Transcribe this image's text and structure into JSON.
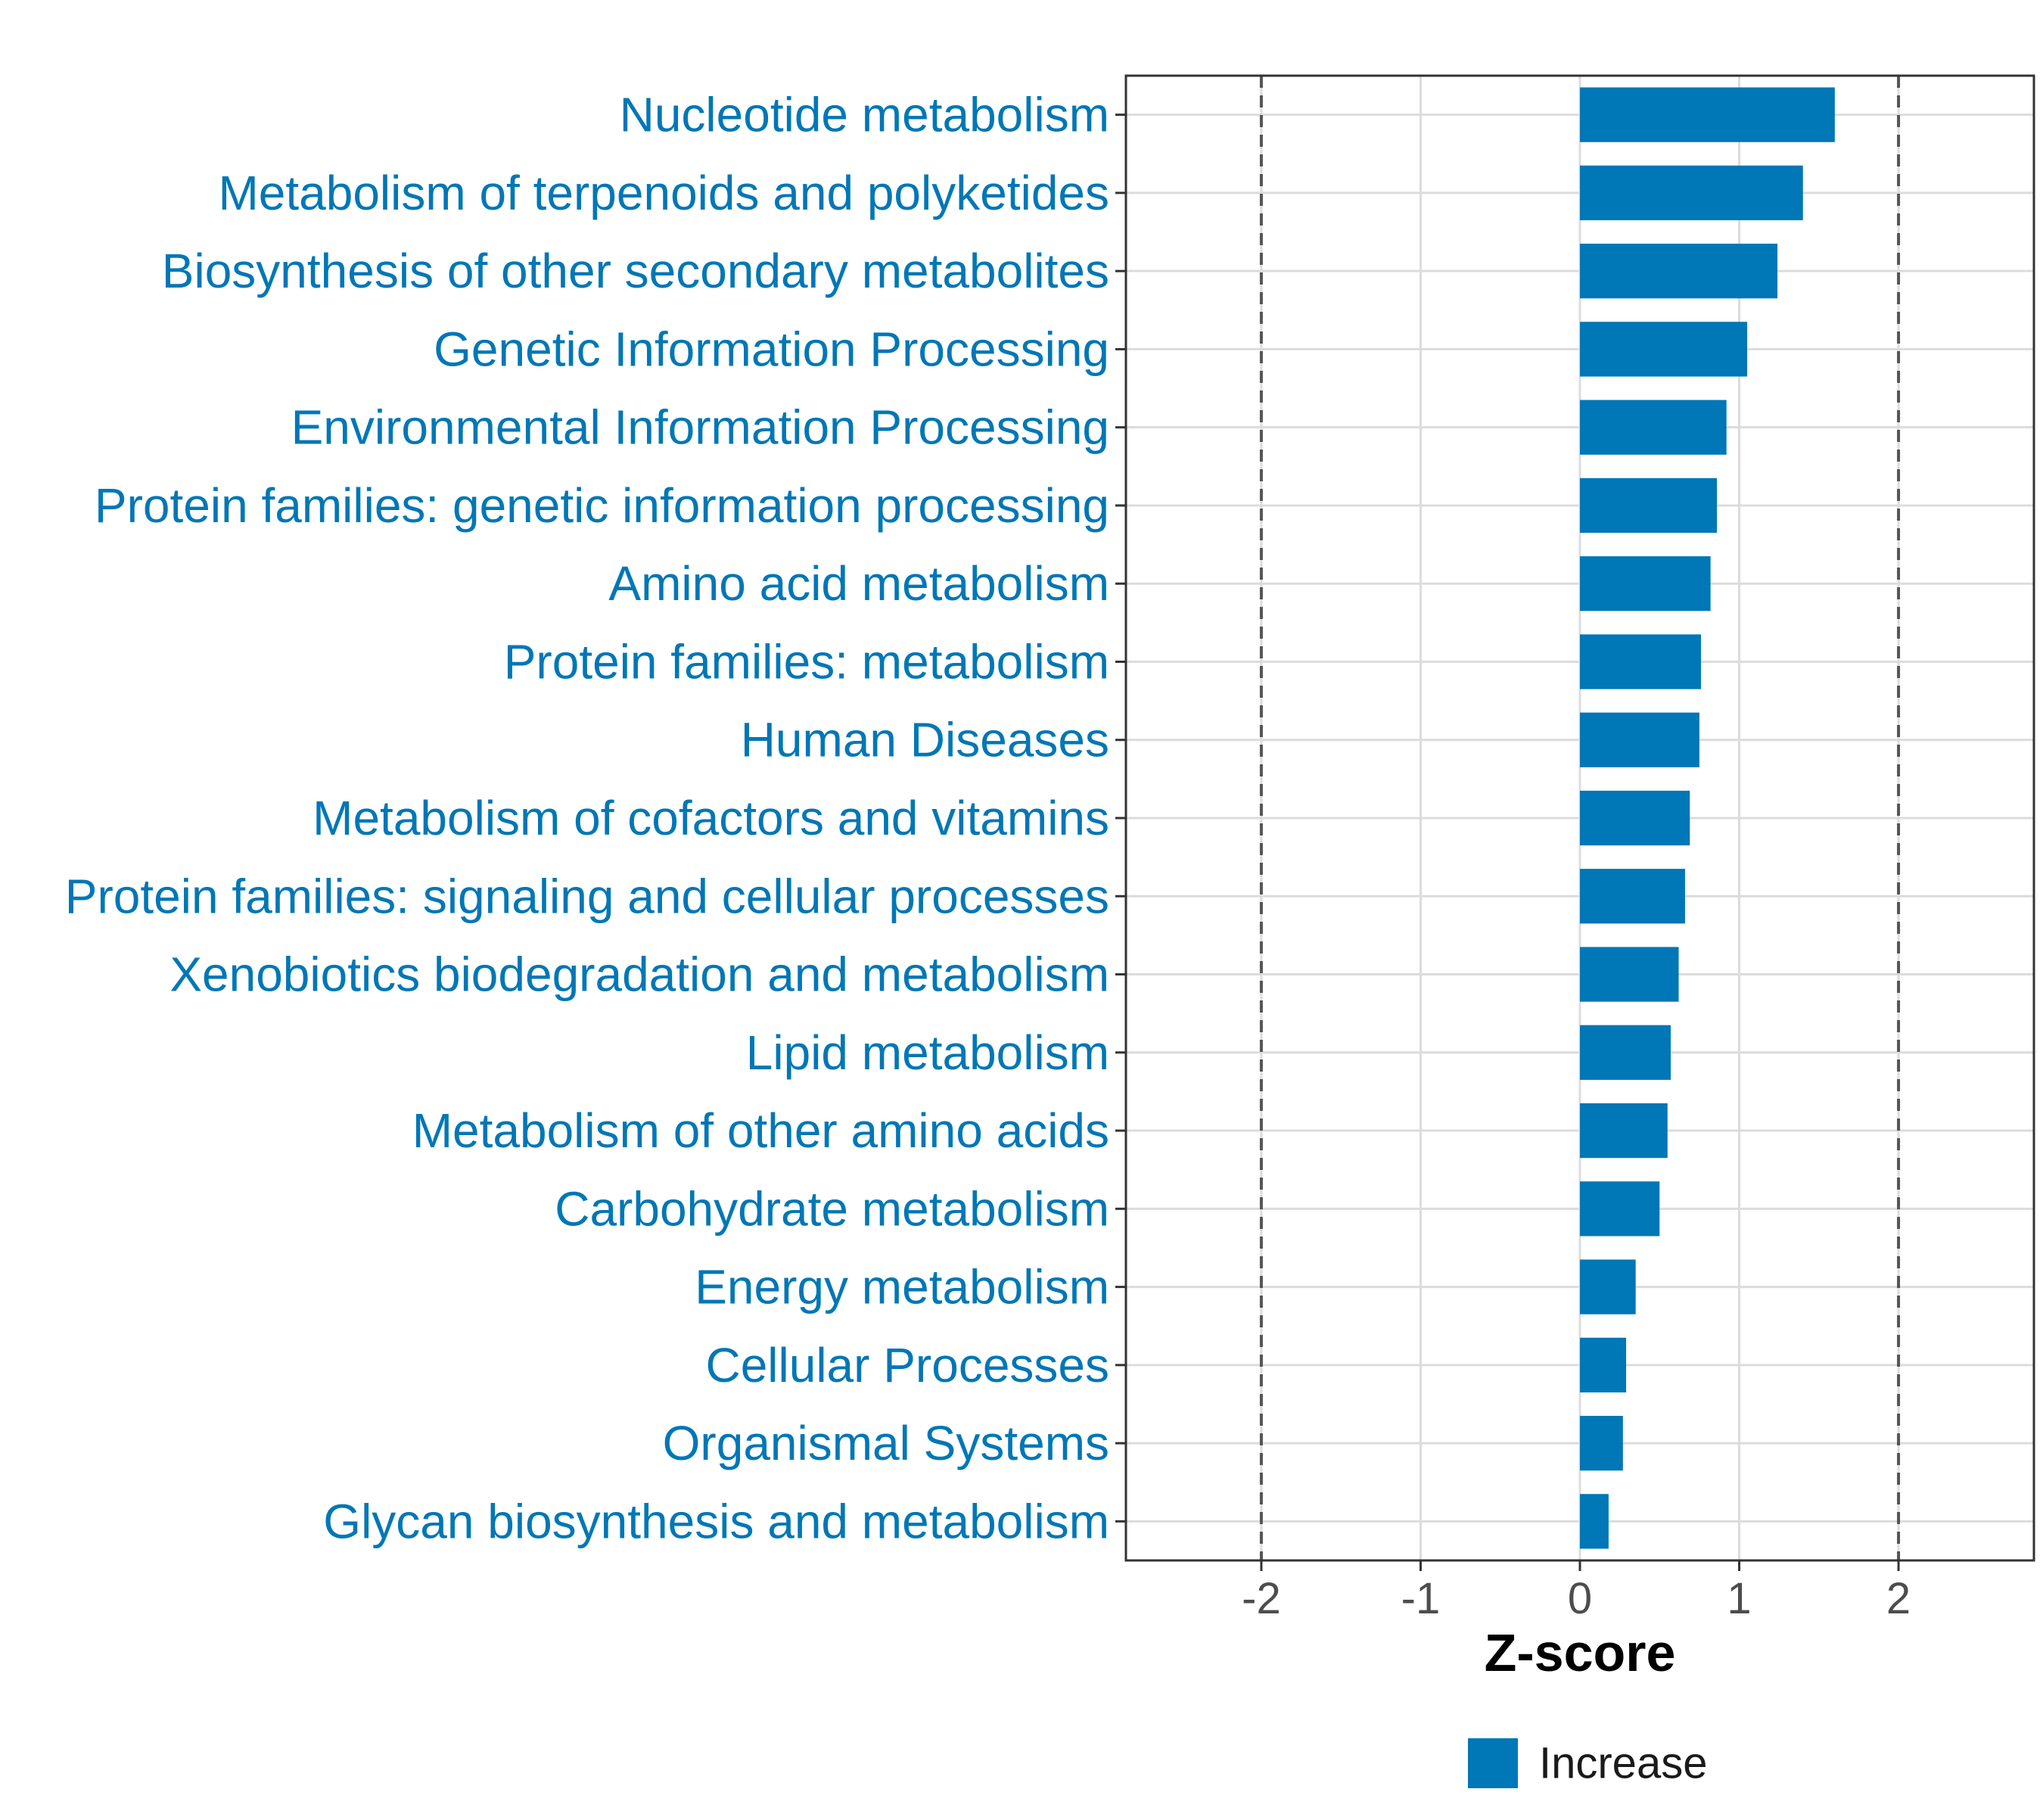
{
  "chart_data": {
    "type": "bar",
    "orientation": "horizontal",
    "categories": [
      "Nucleotide metabolism",
      "Metabolism of terpenoids and polyketides",
      "Biosynthesis of other secondary metabolites",
      "Genetic Information Processing",
      "Environmental Information Processing",
      "Protein families: genetic information processing",
      "Amino acid metabolism",
      "Protein families: metabolism",
      "Human Diseases",
      "Metabolism of cofactors and vitamins",
      "Protein families: signaling and cellular processes",
      "Xenobiotics biodegradation and metabolism",
      "Lipid metabolism",
      "Metabolism of other amino acids",
      "Carbohydrate metabolism",
      "Energy metabolism",
      "Cellular Processes",
      "Organismal Systems",
      "Glycan biosynthesis and metabolism"
    ],
    "values": [
      1.6,
      1.4,
      1.24,
      1.05,
      0.92,
      0.86,
      0.82,
      0.76,
      0.75,
      0.69,
      0.66,
      0.62,
      0.57,
      0.55,
      0.5,
      0.35,
      0.29,
      0.27,
      0.18
    ],
    "series": [
      {
        "name": "Increase",
        "color": "#0077B6"
      }
    ],
    "title": "",
    "xlabel": "Z-score",
    "ylabel": "",
    "xlim": [
      -2.85,
      2.85
    ],
    "xticks": [
      -2,
      -1,
      0,
      1,
      2
    ],
    "xtick_labels": [
      "-2",
      "-1",
      "0",
      "1",
      "2"
    ],
    "reference_lines": [
      -2,
      2
    ],
    "grid": true,
    "legend": {
      "entries": [
        "Increase"
      ],
      "position": "bottom"
    },
    "colors": {
      "bar": "#0077B6",
      "label": "#0077B6",
      "grid": "#DCDCDC",
      "reference": "#555555"
    }
  }
}
